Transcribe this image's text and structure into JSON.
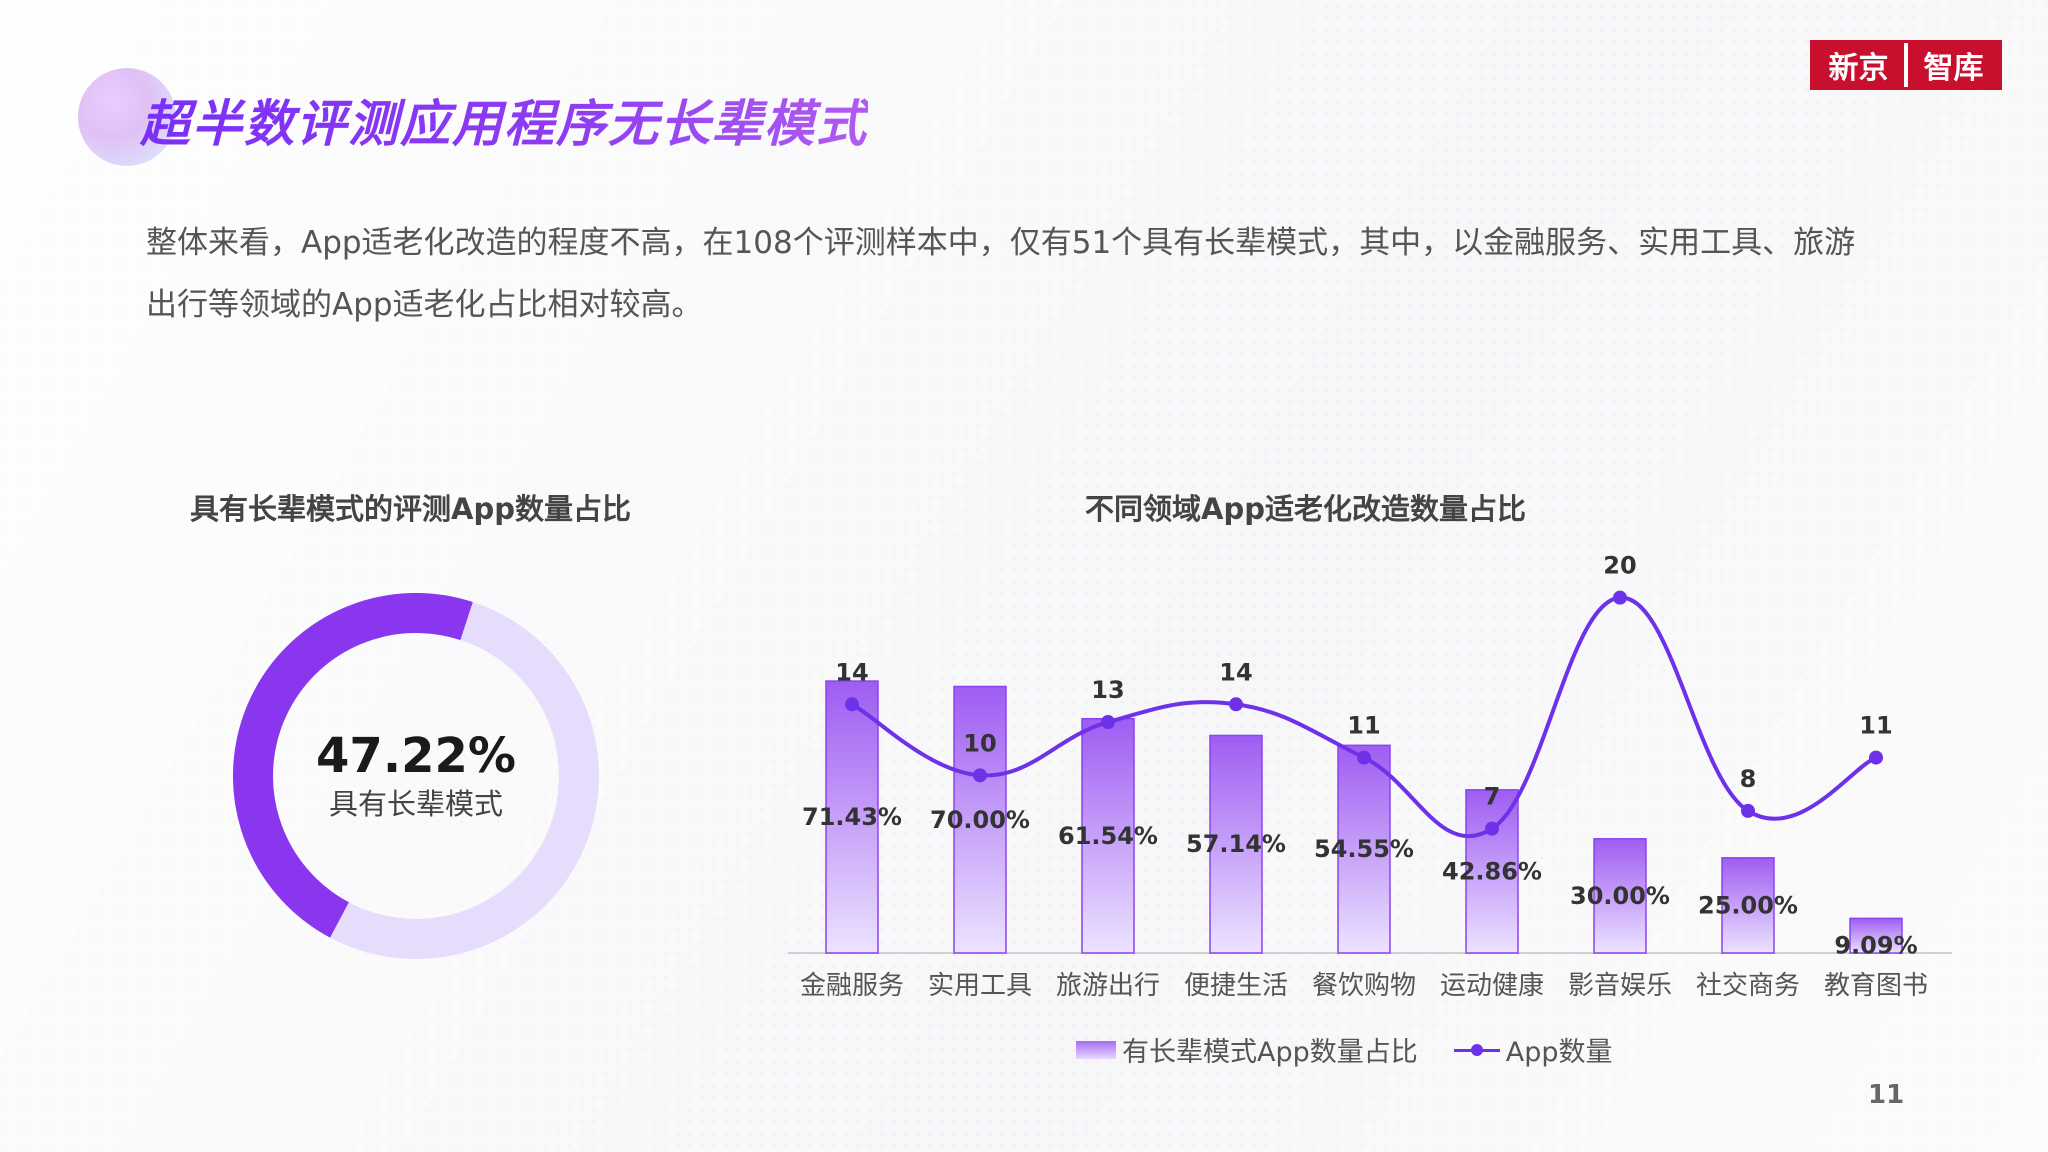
{
  "page": {
    "title": "超半数评测应用程序无长辈模式",
    "logo_left": "新京",
    "logo_right": "智库",
    "intro": "整体来看，App适老化改造的程度不高，在108个评测样本中，仅有51个具有长辈模式，其中，以金融服务、实用工具、旅游出行等领域的App适老化占比相对较高。",
    "page_number": "11"
  },
  "colors": {
    "accent": "#7b2ff7",
    "donut_main": "#8a35ee",
    "donut_rest": "#e6dcfb",
    "line": "#6d32e8",
    "bar_top": "#9f5cf2",
    "bar_bottom": "#ece3ff"
  },
  "chart_data": [
    {
      "type": "pie",
      "title": "具有长辈模式的评测App数量占比",
      "center_value": "47.22%",
      "center_label": "具有长辈模式",
      "values": [
        47.22,
        52.78
      ]
    },
    {
      "type": "bar",
      "title": "不同领域App适老化改造数量占比",
      "categories": [
        "金融服务",
        "实用工具",
        "旅游出行",
        "便捷生活",
        "餐饮购物",
        "运动健康",
        "影音娱乐",
        "社交商务",
        "教育图书"
      ],
      "series": [
        {
          "name": "有长辈模式App数量占比",
          "type": "bar",
          "values": [
            71.43,
            70.0,
            61.54,
            57.14,
            54.55,
            42.86,
            30.0,
            25.0,
            9.09
          ],
          "labels": [
            "71.43%",
            "70.00%",
            "61.54%",
            "57.14%",
            "54.55%",
            "42.86%",
            "30.00%",
            "25.00%",
            "9.09%"
          ]
        },
        {
          "name": "App数量",
          "type": "line",
          "values": [
            14,
            10,
            13,
            14,
            11,
            7,
            20,
            8,
            11
          ],
          "labels": [
            "14",
            "10",
            "13",
            "14",
            "11",
            "7",
            "20",
            "8",
            "11"
          ]
        }
      ],
      "ylim_bar": [
        0,
        140
      ],
      "ylim_line": [
        0,
        30
      ],
      "legend_position": "bottom",
      "grid": false
    }
  ]
}
